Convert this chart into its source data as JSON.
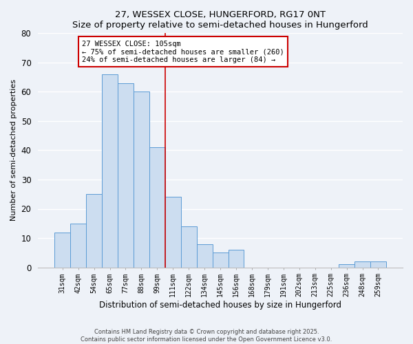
{
  "title": "27, WESSEX CLOSE, HUNGERFORD, RG17 0NT",
  "subtitle": "Size of property relative to semi-detached houses in Hungerford",
  "xlabel": "Distribution of semi-detached houses by size in Hungerford",
  "ylabel": "Number of semi-detached properties",
  "bar_labels": [
    "31sqm",
    "42sqm",
    "54sqm",
    "65sqm",
    "77sqm",
    "88sqm",
    "99sqm",
    "111sqm",
    "122sqm",
    "134sqm",
    "145sqm",
    "156sqm",
    "168sqm",
    "179sqm",
    "191sqm",
    "202sqm",
    "213sqm",
    "225sqm",
    "236sqm",
    "248sqm",
    "259sqm"
  ],
  "bar_values": [
    12,
    15,
    25,
    66,
    63,
    60,
    41,
    24,
    14,
    8,
    5,
    6,
    0,
    0,
    0,
    0,
    0,
    0,
    1,
    2,
    2
  ],
  "bar_color": "#ccddf0",
  "bar_edge_color": "#5b9bd5",
  "vline_color": "#cc0000",
  "ylim": [
    0,
    80
  ],
  "yticks": [
    0,
    10,
    20,
    30,
    40,
    50,
    60,
    70,
    80
  ],
  "annotation_title": "27 WESSEX CLOSE: 105sqm",
  "annotation_line1": "← 75% of semi-detached houses are smaller (260)",
  "annotation_line2": "24% of semi-detached houses are larger (84) →",
  "annotation_box_color": "#ffffff",
  "annotation_box_edge": "#cc0000",
  "footer1": "Contains HM Land Registry data © Crown copyright and database right 2025.",
  "footer2": "Contains public sector information licensed under the Open Government Licence v3.0.",
  "background_color": "#eef2f8",
  "grid_color": "#ffffff"
}
